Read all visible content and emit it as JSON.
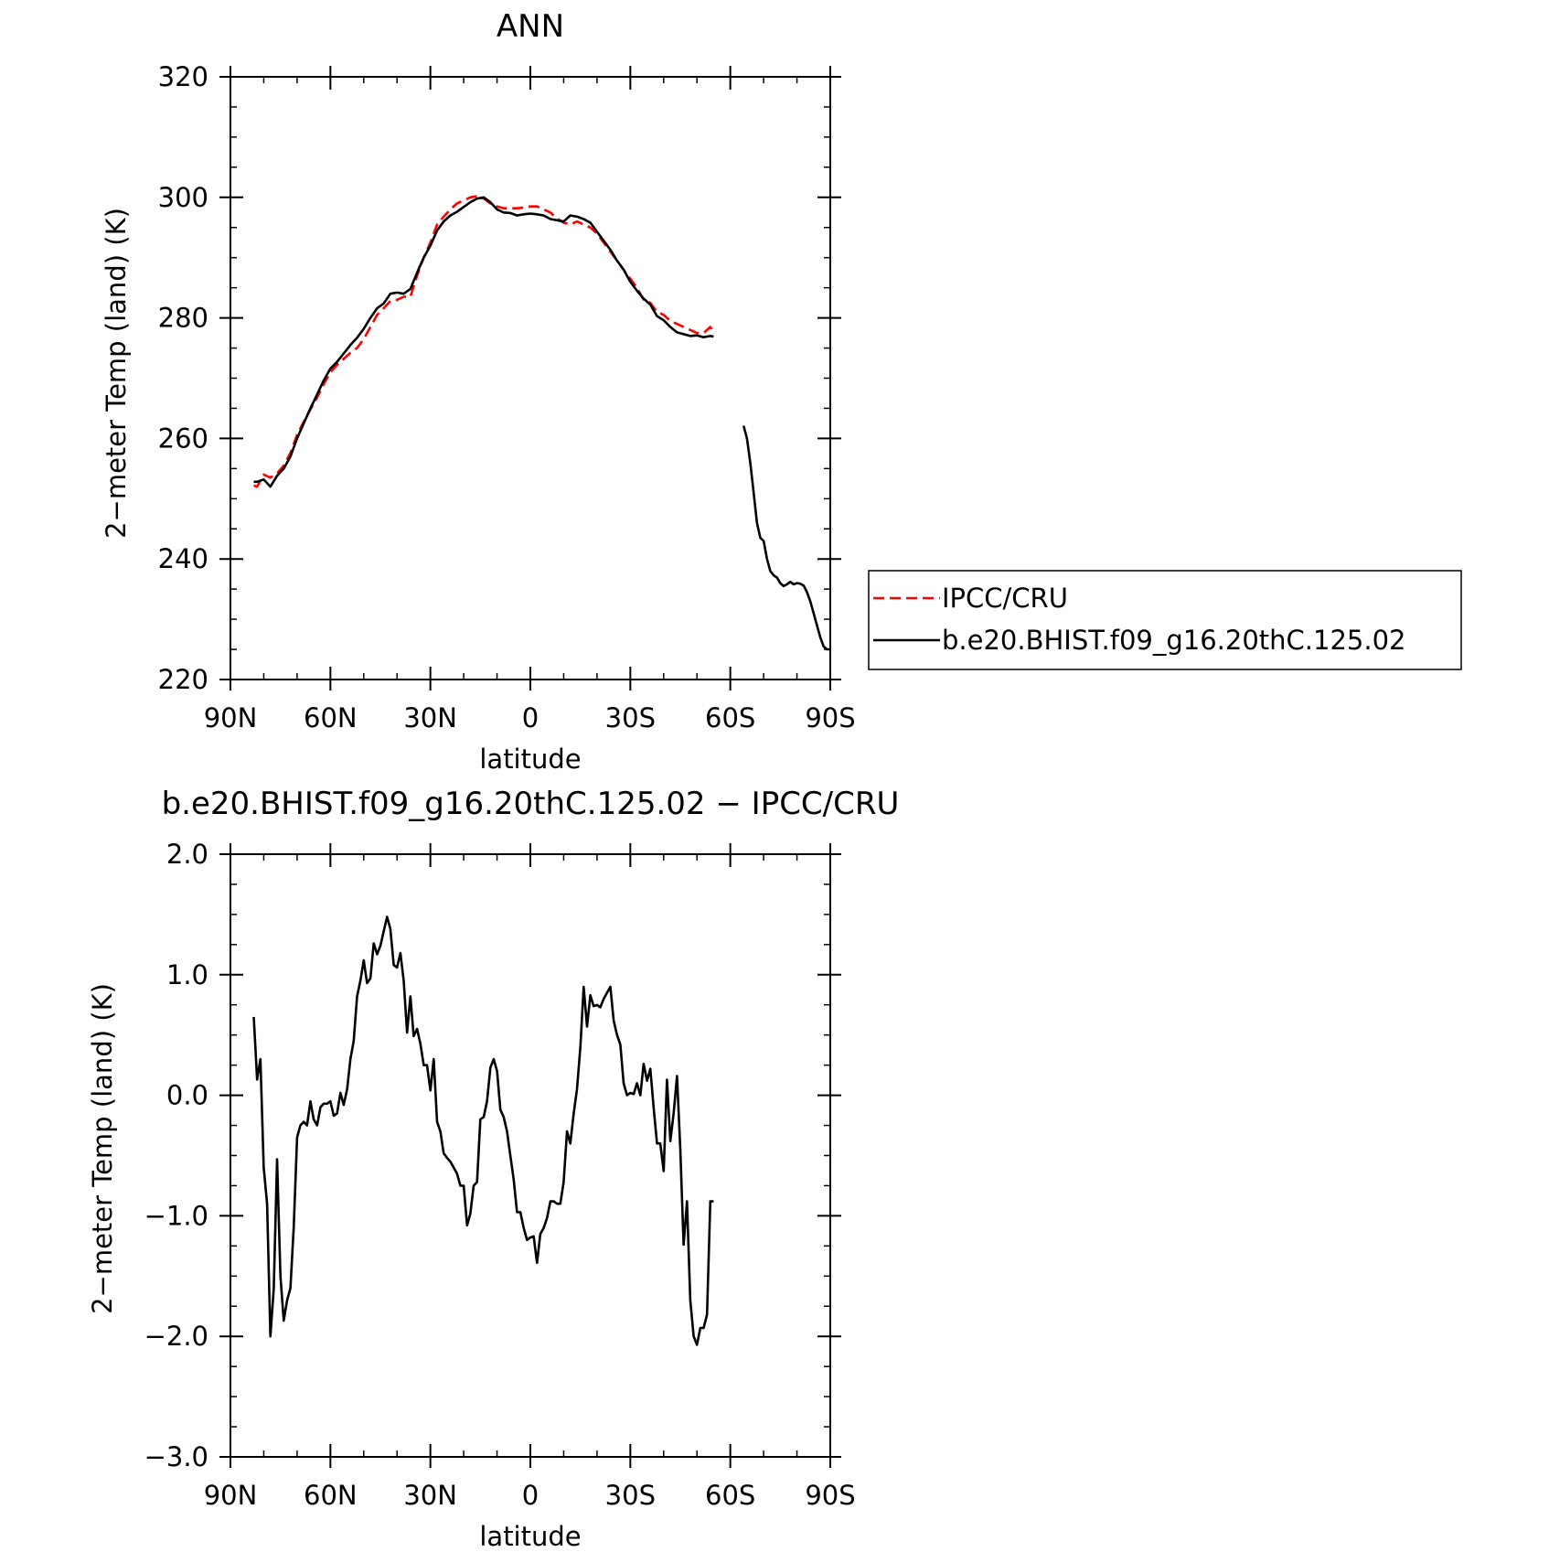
{
  "chart_data": [
    {
      "type": "line",
      "title": "ANN",
      "xlabel": "latitude",
      "ylabel": "2−meter Temp (land) (K)",
      "xlim": [
        90,
        -90
      ],
      "ylim": [
        220,
        320
      ],
      "x_ticks": [
        90,
        60,
        30,
        0,
        -30,
        -60,
        -90
      ],
      "x_tick_labels": [
        "90N",
        "60N",
        "30N",
        "0",
        "30S",
        "60S",
        "90S"
      ],
      "y_ticks": [
        220,
        240,
        260,
        280,
        300,
        320
      ],
      "y_tick_labels": [
        "220",
        "240",
        "260",
        "280",
        "300",
        "320"
      ],
      "legend": {
        "placement": "right",
        "entries": [
          "IPCC/CRU",
          "b.e20.BHIST.f09_g16.20thC.125.02"
        ]
      },
      "series": [
        {
          "name": "IPCC/CRU",
          "color": "#ff0000",
          "dash": "dashed",
          "segments": [
            {
              "x": [
                83,
                82,
                80,
                78,
                76,
                74,
                72,
                70,
                68,
                66,
                64,
                62,
                60,
                58,
                56,
                54,
                52,
                50,
                48,
                46,
                44,
                42,
                40,
                38,
                36,
                34,
                32,
                30,
                28,
                26,
                24,
                22,
                20,
                18,
                16,
                14,
                12,
                10,
                8,
                6,
                4,
                2,
                0,
                -2,
                -4,
                -6,
                -8,
                -10,
                -12,
                -14,
                -16,
                -18,
                -20,
                -22,
                -24,
                -26,
                -28,
                -30,
                -32,
                -34,
                -36,
                -38,
                -40,
                -42,
                -44,
                -46,
                -48,
                -50,
                -52,
                -54,
                -55
              ],
              "y": [
                252.2,
                252,
                254,
                253.5,
                254.2,
                255.5,
                257.6,
                260.6,
                262.8,
                264.8,
                266.8,
                269.0,
                271.0,
                272.2,
                273.2,
                274.2,
                275.0,
                276.5,
                278.5,
                280.5,
                281.6,
                282.8,
                283.0,
                283.5,
                283.5,
                287,
                290,
                292.5,
                295.5,
                296.8,
                298.0,
                299.0,
                299.5,
                300.0,
                300.2,
                299.8,
                299.0,
                298.5,
                298.2,
                298.2,
                298.2,
                298.3,
                298.5,
                298.5,
                298.0,
                297.5,
                296.5,
                295.8,
                295.5,
                296.0,
                295.5,
                295.0,
                294.0,
                292.5,
                291.0,
                289.5,
                288.0,
                286.5,
                285.0,
                283.0,
                282.5,
                281.0,
                280.5,
                279.5,
                279.0,
                278.5,
                278.0,
                277.5,
                277.5,
                278.5,
                277.5
              ]
            }
          ]
        },
        {
          "name": "b.e20.BHIST.f09_g16.20thC.125.02",
          "color": "#000000",
          "dash": "solid",
          "segments": [
            {
              "x": [
                83,
                82,
                80,
                78,
                76,
                74,
                72,
                70,
                68,
                66,
                64,
                62,
                60,
                58,
                56,
                54,
                52,
                50,
                48,
                46,
                44,
                42,
                40,
                38,
                36,
                34,
                32,
                30,
                28,
                26,
                24,
                22,
                20,
                18,
                16,
                14,
                12,
                10,
                8,
                6,
                4,
                2,
                0,
                -2,
                -4,
                -6,
                -8,
                -10,
                -12,
                -14,
                -16,
                -18,
                -20,
                -22,
                -24,
                -26,
                -28,
                -30,
                -32,
                -34,
                -36,
                -38,
                -40,
                -42,
                -44,
                -46,
                -48,
                -50,
                -52,
                -54,
                -55
              ],
              "y": [
                252.8,
                252.8,
                253.2,
                252,
                253.8,
                255,
                257,
                260,
                262.5,
                265,
                267.3,
                269.6,
                271.6,
                272.7,
                274.1,
                275.5,
                276.7,
                278.2,
                280.0,
                281.6,
                282.4,
                284.0,
                284.2,
                284.0,
                284.8,
                287.5,
                290.0,
                292.0,
                294.5,
                296.0,
                297.0,
                297.6,
                298.4,
                299.2,
                299.8,
                300.0,
                299.2,
                298.0,
                297.5,
                297.4,
                297.0,
                297.2,
                297.3,
                297.2,
                297.0,
                296.4,
                296.2,
                296.0,
                297.0,
                296.8,
                296.4,
                295.8,
                294.3,
                292.8,
                291.3,
                289.5,
                288.0,
                286.0,
                284.5,
                283.2,
                282.2,
                280.3,
                279.6,
                278.5,
                277.6,
                277.3,
                277.0,
                277.1,
                276.8,
                277.0,
                276.9
              ]
            },
            {
              "x": [
                -64,
                -65,
                -66,
                -67,
                -68,
                -69,
                -70,
                -71,
                -72,
                -73,
                -74,
                -75,
                -76,
                -77,
                -78,
                -79,
                -80,
                -81,
                -82,
                -83,
                -84,
                -85,
                -86,
                -87,
                -88,
                -89,
                -90
              ],
              "y": [
                262.1,
                260,
                256,
                251,
                246,
                243.5,
                243,
                240,
                238,
                237.3,
                236.9,
                236,
                235.5,
                235.8,
                236.2,
                235.8,
                236.0,
                235.9,
                235.6,
                234.5,
                233.0,
                231.0,
                229.0,
                227.0,
                225.5,
                225.0,
                225.0
              ]
            }
          ]
        }
      ]
    },
    {
      "type": "line",
      "title": "b.e20.BHIST.f09_g16.20thC.125.02 − IPCC/CRU",
      "xlabel": "latitude",
      "ylabel": "2−meter Temp (land) (K)",
      "xlim": [
        90,
        -90
      ],
      "ylim": [
        -3,
        2
      ],
      "x_ticks": [
        90,
        60,
        30,
        0,
        -30,
        -60,
        -90
      ],
      "x_tick_labels": [
        "90N",
        "60N",
        "30N",
        "0",
        "30S",
        "60S",
        "90S"
      ],
      "y_ticks": [
        -3,
        -2,
        -1,
        0,
        1,
        2
      ],
      "y_tick_labels": [
        "−3.0",
        "−2.0",
        "−1.0",
        "0.0",
        "1.0",
        "2.0"
      ],
      "series": [
        {
          "color": "#000000",
          "dash": "solid",
          "segments": [
            {
              "x": [
                83,
                82,
                81,
                80,
                79,
                78,
                77,
                76,
                75,
                74,
                73,
                72,
                71,
                70,
                69,
                68,
                67,
                66,
                65,
                64,
                63,
                62,
                61,
                60,
                59,
                58,
                57,
                56,
                55,
                54,
                53,
                52,
                51,
                50,
                49,
                48,
                47,
                46,
                45,
                44,
                43,
                42,
                41,
                40,
                39,
                38,
                37,
                36,
                35,
                34,
                33,
                32,
                31,
                30,
                29,
                28,
                27,
                26,
                25,
                24,
                23,
                22,
                21,
                20,
                19,
                18,
                17,
                16,
                15,
                14,
                13,
                12,
                11,
                10,
                9,
                8,
                7,
                6,
                5,
                4,
                3,
                2,
                1,
                0,
                -1,
                -2,
                -3,
                -4,
                -5,
                -6,
                -7,
                -8,
                -9,
                -10,
                -11,
                -12,
                -13,
                -14,
                -15,
                -16,
                -17,
                -18,
                -19,
                -20,
                -21,
                -22,
                -23,
                -24,
                -25,
                -26,
                -27,
                -28,
                -29,
                -30,
                -31,
                -32,
                -33,
                -34,
                -35,
                -36,
                -37,
                -38,
                -39,
                -40,
                -41,
                -42,
                -43,
                -44,
                -45,
                -46,
                -47,
                -48,
                -49,
                -50,
                -51,
                -52,
                -53,
                -54,
                -55
              ],
              "y": [
                0.65,
                0.13,
                0.3,
                -0.6,
                -0.9,
                -2.0,
                -1.6,
                -0.53,
                -1.5,
                -1.87,
                -1.7,
                -1.6,
                -1.1,
                -0.35,
                -0.25,
                -0.22,
                -0.25,
                -0.05,
                -0.2,
                -0.25,
                -0.1,
                -0.07,
                -0.07,
                -0.05,
                -0.17,
                -0.15,
                0.02,
                -0.08,
                0.05,
                0.3,
                0.45,
                0.82,
                0.95,
                1.12,
                0.93,
                0.97,
                1.26,
                1.17,
                1.24,
                1.36,
                1.48,
                1.38,
                1.08,
                1.06,
                1.18,
                0.95,
                0.52,
                0.82,
                0.49,
                0.55,
                0.43,
                0.25,
                0.25,
                0.04,
                0.3,
                -0.22,
                -0.3,
                -0.48,
                -0.52,
                -0.55,
                -0.6,
                -0.65,
                -0.75,
                -0.75,
                -1.08,
                -0.98,
                -0.75,
                -0.72,
                -0.2,
                -0.18,
                -0.05,
                0.23,
                0.3,
                0.2,
                -0.12,
                -0.18,
                -0.3,
                -0.5,
                -0.7,
                -0.97,
                -0.97,
                -1.1,
                -1.2,
                -1.18,
                -1.17,
                -1.39,
                -1.15,
                -1.1,
                -1.02,
                -0.88,
                -0.88,
                -0.9,
                -0.9,
                -0.72,
                -0.3,
                -0.4,
                -0.15,
                0.05,
                0.4,
                0.9,
                0.57,
                0.83,
                0.74,
                0.75,
                0.73,
                0.8,
                0.85,
                0.9,
                0.62,
                0.5,
                0.42,
                0.1,
                0.0,
                0.02,
                0.01,
                0.1,
                0.0,
                0.26,
                0.12,
                0.22,
                -0.1,
                -0.4,
                -0.4,
                -0.63,
                0.13,
                -0.38,
                -0.15,
                0.16,
                -0.45,
                -1.24,
                -0.88,
                -1.7,
                -2.0,
                -2.07,
                -1.93,
                -1.93,
                -1.82,
                -0.88,
                -0.88
              ]
            }
          ]
        }
      ]
    }
  ]
}
